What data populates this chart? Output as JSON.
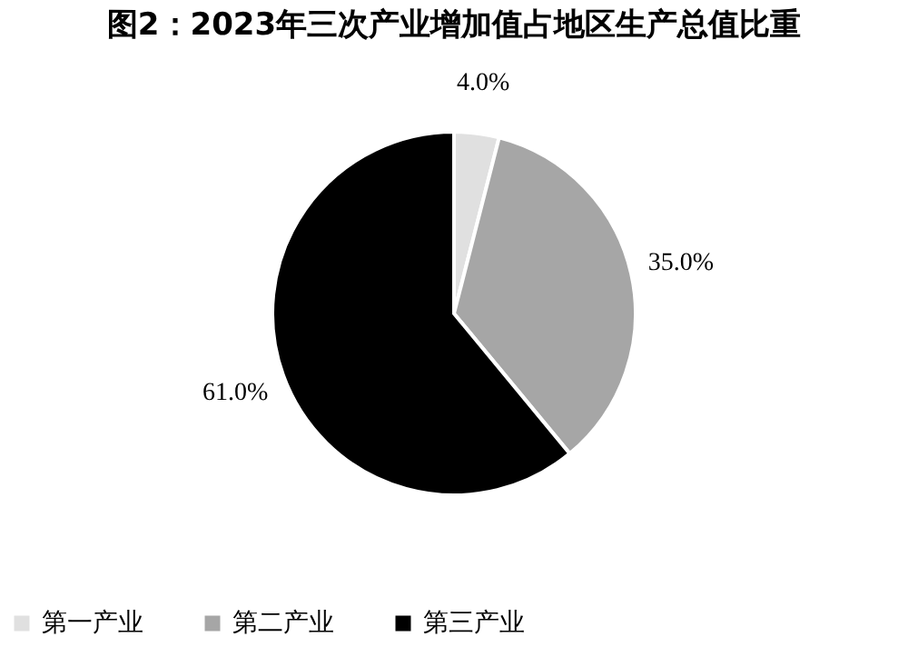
{
  "chart_data": {
    "type": "pie",
    "title": "图2：2023年三次产业增加值占地区生产总值比重",
    "categories": [
      "第一产业",
      "第二产业",
      "第三产业"
    ],
    "values": [
      4.0,
      35.0,
      61.0
    ],
    "colors": [
      "#e0e0e0",
      "#a6a6a6",
      "#000000"
    ],
    "value_labels": [
      "4.0%",
      "35.0%",
      "61.0%"
    ],
    "legend": "bottom"
  }
}
